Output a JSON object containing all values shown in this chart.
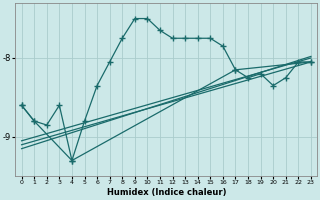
{
  "xlabel": "Humidex (Indice chaleur)",
  "ylabel": "",
  "bg_color": "#cce8e8",
  "grid_color": "#aacccc",
  "line_color": "#1a6b6b",
  "x": [
    0,
    1,
    2,
    3,
    4,
    5,
    6,
    7,
    8,
    9,
    10,
    11,
    12,
    13,
    14,
    15,
    16,
    17,
    18,
    19,
    20,
    21,
    22,
    23
  ],
  "line1": [
    -8.6,
    -8.8,
    -8.85,
    -8.6,
    -9.3,
    -8.8,
    -8.35,
    -8.05,
    -7.75,
    -7.5,
    -7.5,
    -7.65,
    -7.75,
    -7.75,
    -7.75,
    -7.75,
    -7.85,
    -8.15,
    -8.25,
    -8.2,
    -8.35,
    -8.25,
    -8.05,
    -8.05
  ],
  "line2_x": [
    0,
    1,
    4,
    17,
    23
  ],
  "line2_y": [
    -8.6,
    -8.8,
    -9.3,
    -8.15,
    -8.05
  ],
  "line3_x": [
    0,
    23
  ],
  "line3_y": [
    -9.05,
    -8.0
  ],
  "line4_x": [
    0,
    23
  ],
  "line4_y": [
    -9.1,
    -8.05
  ],
  "line5_x": [
    0,
    23
  ],
  "line5_y": [
    -9.15,
    -7.98
  ],
  "ylim": [
    -9.5,
    -7.3
  ],
  "xlim": [
    -0.5,
    23.5
  ]
}
